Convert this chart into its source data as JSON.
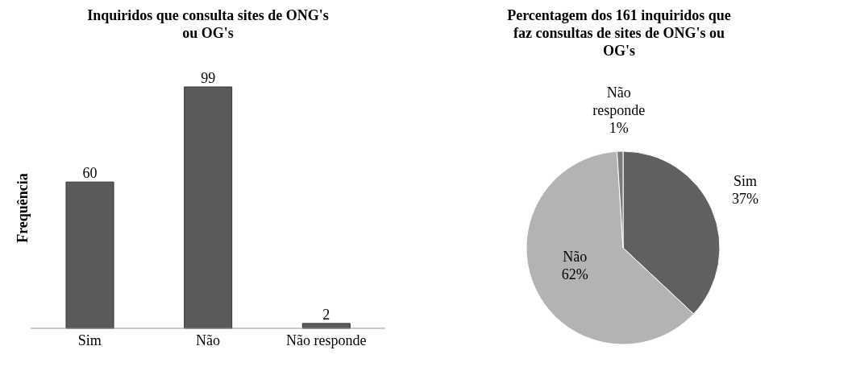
{
  "chart_data": [
    {
      "type": "bar",
      "title": "Inquiridos que consulta sites de ONG's ou OG's",
      "ylabel": "Frequência",
      "categories": [
        "Sim",
        "Não",
        "Não responde"
      ],
      "values": [
        60,
        99,
        2
      ],
      "color": "#5a5a5a",
      "data_labels": true
    },
    {
      "type": "pie",
      "title": "Percentagem dos 161 inquiridos que faz consultas de sites de ONG's ou OG's",
      "categories": [
        "Sim",
        "Não",
        "Não responde"
      ],
      "values": [
        37,
        62,
        1
      ],
      "colors": [
        "#606060",
        "#b3b3b3",
        "#7a7a7a"
      ],
      "value_labels": [
        "37%",
        "62%",
        "1%"
      ]
    }
  ]
}
